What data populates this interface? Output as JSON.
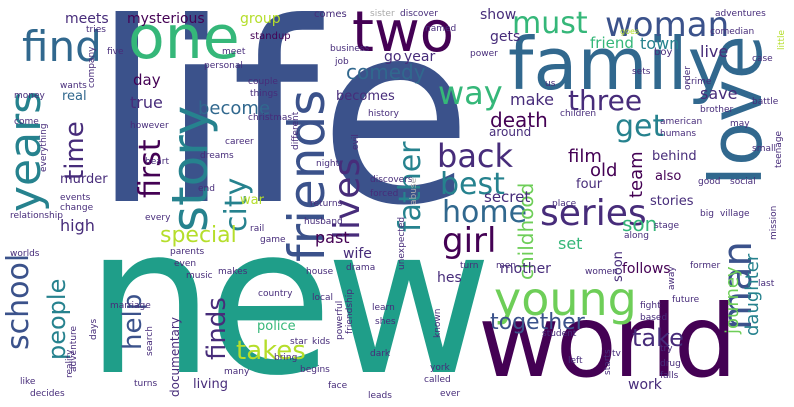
{
  "palette": {
    "dark_purple": "#440154",
    "indigo": "#472c7a",
    "blue": "#3b528b",
    "slate_blue": "#31688e",
    "teal_blue": "#26828e",
    "teal": "#1f9e89",
    "green_teal": "#35b779",
    "green": "#6ece58",
    "lime": "#b5de2b",
    "yellow": "#fde725"
  },
  "words": [
    {
      "text": "life",
      "color": "#3b528b"
    },
    {
      "text": "new",
      "color": "#1f9e89"
    },
    {
      "text": "world",
      "color": "#440154"
    },
    {
      "text": "family",
      "color": "#31688e"
    },
    {
      "text": "love",
      "color": "#31688e"
    },
    {
      "text": "one",
      "color": "#35b779"
    },
    {
      "text": "two",
      "color": "#440154"
    },
    {
      "text": "story",
      "color": "#26828e"
    },
    {
      "text": "friends",
      "color": "#3b528b"
    },
    {
      "text": "young",
      "color": "#6ece58"
    },
    {
      "text": "years",
      "color": "#26828e"
    },
    {
      "text": "woman",
      "color": "#3b528b"
    },
    {
      "text": "must",
      "color": "#35b779"
    },
    {
      "text": "find",
      "color": "#31688e"
    },
    {
      "text": "series",
      "color": "#472c7a"
    },
    {
      "text": "school",
      "color": "#3b528b"
    },
    {
      "text": "man",
      "color": "#3b528b"
    },
    {
      "text": "girl",
      "color": "#440154"
    },
    {
      "text": "back",
      "color": "#472c7a"
    },
    {
      "text": "home",
      "color": "#31688e"
    },
    {
      "text": "best",
      "color": "#26828e"
    },
    {
      "text": "lives",
      "color": "#472c7a"
    },
    {
      "text": "first",
      "color": "#440154"
    },
    {
      "text": "city",
      "color": "#26828e"
    },
    {
      "text": "father",
      "color": "#26828e"
    },
    {
      "text": "way",
      "color": "#35b779"
    },
    {
      "text": "three",
      "color": "#472c7a"
    },
    {
      "text": "get",
      "color": "#26828e"
    },
    {
      "text": "time",
      "color": "#472c7a"
    },
    {
      "text": "people",
      "color": "#26828e"
    },
    {
      "text": "finds",
      "color": "#472c7a"
    },
    {
      "text": "help",
      "color": "#3b528b"
    },
    {
      "text": "takes",
      "color": "#b5de2b"
    },
    {
      "text": "special",
      "color": "#b5de2b"
    },
    {
      "text": "take",
      "color": "#472c7a"
    },
    {
      "text": "together",
      "color": "#3b528b"
    },
    {
      "text": "comedy",
      "color": "#31688e"
    },
    {
      "text": "death",
      "color": "#440154"
    },
    {
      "text": "childhood",
      "color": "#6ece58"
    },
    {
      "text": "son",
      "color": "#35b779"
    },
    {
      "text": "daughter",
      "color": "#26828e"
    },
    {
      "text": "journey",
      "color": "#6ece58"
    },
    {
      "text": "team",
      "color": "#440154"
    },
    {
      "text": "film",
      "color": "#440154"
    },
    {
      "text": "old",
      "color": "#440154"
    },
    {
      "text": "become",
      "color": "#31688e"
    },
    {
      "text": "mysterious",
      "color": "#440154"
    },
    {
      "text": "group",
      "color": "#b5de2b"
    },
    {
      "text": "make",
      "color": "#472c7a"
    },
    {
      "text": "true",
      "color": "#472c7a"
    },
    {
      "text": "save",
      "color": "#472c7a"
    },
    {
      "text": "live",
      "color": "#472c7a"
    },
    {
      "text": "friend",
      "color": "#35b779"
    },
    {
      "text": "town",
      "color": "#26828e"
    },
    {
      "text": "show",
      "color": "#472c7a"
    },
    {
      "text": "gets",
      "color": "#472c7a"
    },
    {
      "text": "go",
      "color": "#472c7a"
    },
    {
      "text": "year",
      "color": "#472c7a"
    },
    {
      "text": "becomes",
      "color": "#472c7a"
    },
    {
      "text": "meets",
      "color": "#472c7a"
    },
    {
      "text": "day",
      "color": "#440154"
    },
    {
      "text": "real",
      "color": "#31688e"
    },
    {
      "text": "murder",
      "color": "#472c7a"
    },
    {
      "text": "high",
      "color": "#472c7a"
    },
    {
      "text": "war",
      "color": "#b5de2b"
    },
    {
      "text": "past",
      "color": "#440154"
    },
    {
      "text": "wife",
      "color": "#472c7a"
    },
    {
      "text": "set",
      "color": "#35b779"
    },
    {
      "text": "mother",
      "color": "#472c7a"
    },
    {
      "text": "hes",
      "color": "#472c7a"
    },
    {
      "text": "follows",
      "color": "#440154"
    },
    {
      "text": "secret",
      "color": "#472c7a"
    },
    {
      "text": "four",
      "color": "#472c7a"
    },
    {
      "text": "stories",
      "color": "#472c7a"
    },
    {
      "text": "also",
      "color": "#440154"
    },
    {
      "text": "behind",
      "color": "#472c7a"
    },
    {
      "text": "soon",
      "color": "#472c7a"
    },
    {
      "text": "around",
      "color": "#472c7a"
    },
    {
      "text": "police",
      "color": "#35b779"
    },
    {
      "text": "living",
      "color": "#472c7a"
    },
    {
      "text": "documentary",
      "color": "#472c7a"
    },
    {
      "text": "work",
      "color": "#472c7a"
    },
    {
      "text": "standup",
      "color": "#440154"
    },
    {
      "text": "comes",
      "color": "#472c7a"
    },
    {
      "text": "sister",
      "color": "#aaaaaa"
    },
    {
      "text": "discover",
      "color": "#472c7a"
    },
    {
      "text": "adventures",
      "color": "#472c7a"
    },
    {
      "text": "named",
      "color": "#472c7a"
    },
    {
      "text": "comedian",
      "color": "#472c7a"
    },
    {
      "text": "boy",
      "color": "#472c7a"
    },
    {
      "text": "case",
      "color": "#472c7a"
    },
    {
      "text": "little",
      "color": "#b5de2b"
    },
    {
      "text": "power",
      "color": "#472c7a"
    },
    {
      "text": "business",
      "color": "#472c7a"
    },
    {
      "text": "goes",
      "color": "#b5de2b"
    },
    {
      "text": "sets",
      "color": "#472c7a"
    },
    {
      "text": "us",
      "color": "#472c7a"
    },
    {
      "text": "order",
      "color": "#472c7a"
    },
    {
      "text": "crime",
      "color": "#472c7a"
    },
    {
      "text": "brother",
      "color": "#472c7a"
    },
    {
      "text": "battle",
      "color": "#472c7a"
    },
    {
      "text": "may",
      "color": "#472c7a"
    },
    {
      "text": "small",
      "color": "#472c7a"
    },
    {
      "text": "teenage",
      "color": "#472c7a"
    },
    {
      "text": "social",
      "color": "#472c7a"
    },
    {
      "text": "american",
      "color": "#472c7a"
    },
    {
      "text": "humans",
      "color": "#472c7a"
    },
    {
      "text": "children",
      "color": "#472c7a"
    },
    {
      "text": "good",
      "color": "#472c7a"
    },
    {
      "text": "place",
      "color": "#472c7a"
    },
    {
      "text": "big",
      "color": "#472c7a"
    },
    {
      "text": "village",
      "color": "#472c7a"
    },
    {
      "text": "mission",
      "color": "#472c7a"
    },
    {
      "text": "along",
      "color": "#472c7a"
    },
    {
      "text": "stage",
      "color": "#472c7a"
    },
    {
      "text": "former",
      "color": "#472c7a"
    },
    {
      "text": "last",
      "color": "#472c7a"
    },
    {
      "text": "future",
      "color": "#472c7a"
    },
    {
      "text": "women",
      "color": "#472c7a"
    },
    {
      "text": "away",
      "color": "#472c7a"
    },
    {
      "text": "fight",
      "color": "#472c7a"
    },
    {
      "text": "based",
      "color": "#472c7a"
    },
    {
      "text": "try",
      "color": "#472c7a"
    },
    {
      "text": "drug",
      "color": "#472c7a"
    },
    {
      "text": "falls",
      "color": "#472c7a"
    },
    {
      "text": "tv",
      "color": "#472c7a"
    },
    {
      "text": "student",
      "color": "#472c7a"
    },
    {
      "text": "left",
      "color": "#472c7a"
    },
    {
      "text": "starts",
      "color": "#472c7a"
    },
    {
      "text": "called",
      "color": "#472c7a"
    },
    {
      "text": "ever",
      "color": "#472c7a"
    },
    {
      "text": "york",
      "color": "#472c7a"
    },
    {
      "text": "face",
      "color": "#472c7a"
    },
    {
      "text": "leads",
      "color": "#472c7a"
    },
    {
      "text": "begins",
      "color": "#472c7a"
    },
    {
      "text": "dark",
      "color": "#472c7a"
    },
    {
      "text": "bring",
      "color": "#472c7a"
    },
    {
      "text": "star",
      "color": "#472c7a"
    },
    {
      "text": "kids",
      "color": "#472c7a"
    },
    {
      "text": "powerful",
      "color": "#472c7a"
    },
    {
      "text": "friendship",
      "color": "#472c7a"
    },
    {
      "text": "shes",
      "color": "#472c7a"
    },
    {
      "text": "learn",
      "color": "#472c7a"
    },
    {
      "text": "local",
      "color": "#472c7a"
    },
    {
      "text": "men",
      "color": "#472c7a"
    },
    {
      "text": "known",
      "color": "#472c7a"
    },
    {
      "text": "turn",
      "color": "#472c7a"
    },
    {
      "text": "drama",
      "color": "#472c7a"
    },
    {
      "text": "house",
      "color": "#472c7a"
    },
    {
      "text": "unexpected",
      "color": "#472c7a"
    },
    {
      "text": "husband",
      "color": "#472c7a"
    },
    {
      "text": "returns",
      "color": "#472c7a"
    },
    {
      "text": "forced",
      "color": "#472c7a"
    },
    {
      "text": "discovers",
      "color": "#472c7a"
    },
    {
      "text": "abuse",
      "color": "#aaaaaa"
    },
    {
      "text": "night",
      "color": "#472c7a"
    },
    {
      "text": "different",
      "color": "#472c7a"
    },
    {
      "text": "evil",
      "color": "#472c7a"
    },
    {
      "text": "history",
      "color": "#472c7a"
    },
    {
      "text": "christmas",
      "color": "#472c7a"
    },
    {
      "text": "things",
      "color": "#472c7a"
    },
    {
      "text": "couple",
      "color": "#472c7a"
    },
    {
      "text": "personal",
      "color": "#472c7a"
    },
    {
      "text": "job",
      "color": "#472c7a"
    },
    {
      "text": "meet",
      "color": "#472c7a"
    },
    {
      "text": "career",
      "color": "#472c7a"
    },
    {
      "text": "dreams",
      "color": "#472c7a"
    },
    {
      "text": "end",
      "color": "#472c7a"
    },
    {
      "text": "rail",
      "color": "#472c7a"
    },
    {
      "text": "game",
      "color": "#472c7a"
    },
    {
      "text": "parents",
      "color": "#472c7a"
    },
    {
      "text": "even",
      "color": "#472c7a"
    },
    {
      "text": "music",
      "color": "#472c7a"
    },
    {
      "text": "makes",
      "color": "#472c7a"
    },
    {
      "text": "many",
      "color": "#472c7a"
    },
    {
      "text": "search",
      "color": "#472c7a"
    },
    {
      "text": "turns",
      "color": "#472c7a"
    },
    {
      "text": "marriage",
      "color": "#472c7a"
    },
    {
      "text": "days",
      "color": "#472c7a"
    },
    {
      "text": "adventure",
      "color": "#472c7a"
    },
    {
      "text": "reality",
      "color": "#472c7a"
    },
    {
      "text": "like",
      "color": "#472c7a"
    },
    {
      "text": "decides",
      "color": "#472c7a"
    },
    {
      "text": "worlds",
      "color": "#472c7a"
    },
    {
      "text": "every",
      "color": "#472c7a"
    },
    {
      "text": "relationship",
      "color": "#472c7a"
    },
    {
      "text": "events",
      "color": "#472c7a"
    },
    {
      "text": "change",
      "color": "#472c7a"
    },
    {
      "text": "heart",
      "color": "#472c7a"
    },
    {
      "text": "however",
      "color": "#472c7a"
    },
    {
      "text": "everything",
      "color": "#472c7a"
    },
    {
      "text": "come",
      "color": "#472c7a"
    },
    {
      "text": "money",
      "color": "#472c7a"
    },
    {
      "text": "wants",
      "color": "#472c7a"
    },
    {
      "text": "company",
      "color": "#472c7a"
    },
    {
      "text": "five",
      "color": "#472c7a"
    },
    {
      "text": "tries",
      "color": "#472c7a"
    },
    {
      "text": "country",
      "color": "#472c7a"
    }
  ]
}
